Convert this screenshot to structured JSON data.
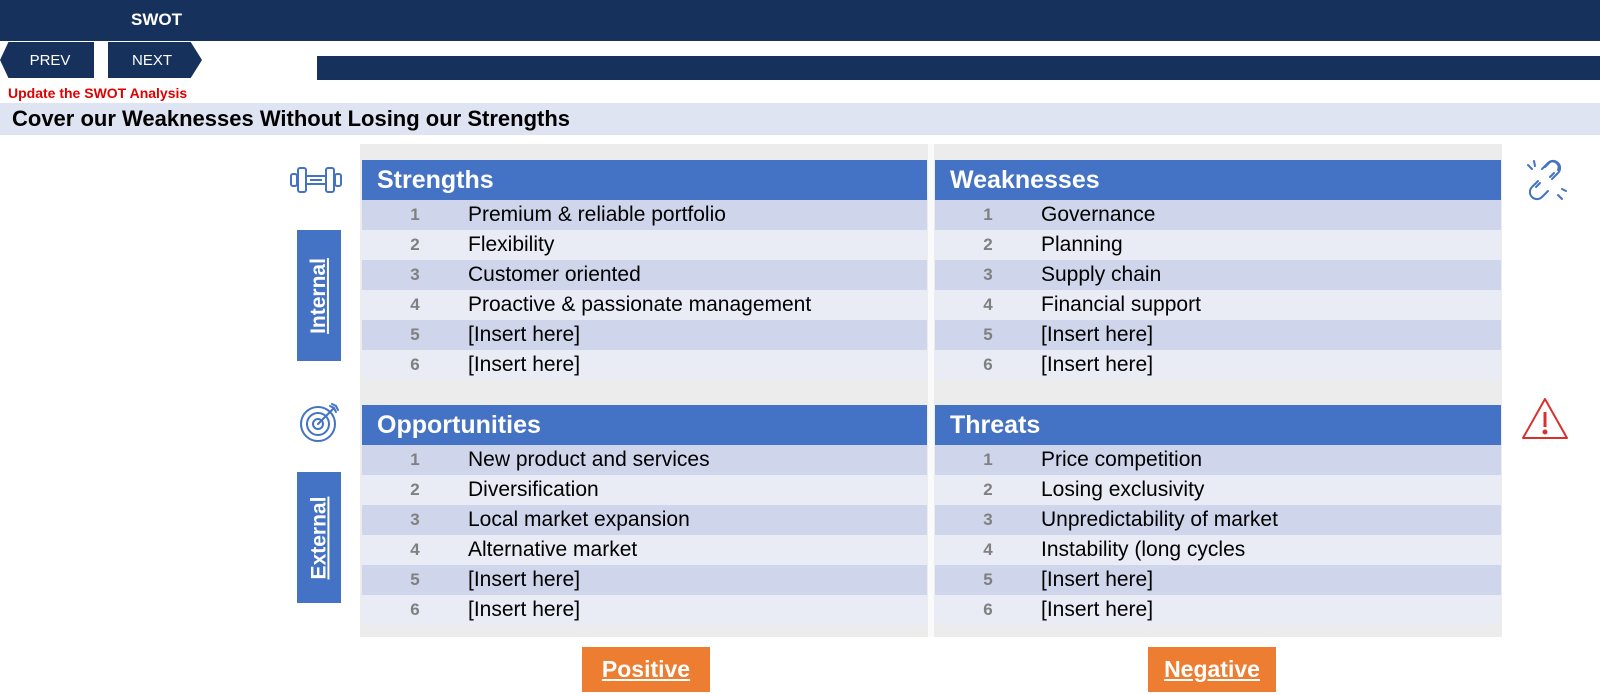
{
  "app": {
    "title": "SWOT"
  },
  "nav": {
    "prev": "PREV",
    "next": "NEXT"
  },
  "hint": "Update the SWOT Analysis",
  "subtitle": "Cover our Weaknesses Without Losing our Strengths",
  "side_labels": {
    "internal": "Internal",
    "external": "External"
  },
  "icons": {
    "strengths": "dumbbell-icon",
    "weaknesses": "broken-link-icon",
    "opportunities": "target-icon",
    "threats": "warning-icon"
  },
  "colors": {
    "header": "#16325c",
    "accent": "#4472c4",
    "orange": "#ed7d31",
    "hint": "#e00000",
    "threat_icon": "#d9302c"
  },
  "quadrants": {
    "strengths": {
      "title": "Strengths",
      "items": [
        {
          "n": "1",
          "text": "Premium & reliable portfolio"
        },
        {
          "n": "2",
          "text": "Flexibility"
        },
        {
          "n": "3",
          "text": "Customer oriented"
        },
        {
          "n": "4",
          "text": "Proactive & passionate management"
        },
        {
          "n": "5",
          "text": "[Insert here]"
        },
        {
          "n": "6",
          "text": "[Insert here]"
        }
      ]
    },
    "weaknesses": {
      "title": "Weaknesses",
      "items": [
        {
          "n": "1",
          "text": "Governance"
        },
        {
          "n": "2",
          "text": "Planning"
        },
        {
          "n": "3",
          "text": "Supply chain"
        },
        {
          "n": "4",
          "text": "Financial support"
        },
        {
          "n": "5",
          "text": "[Insert here]"
        },
        {
          "n": "6",
          "text": "[Insert here]"
        }
      ]
    },
    "opportunities": {
      "title": "Opportunities",
      "items": [
        {
          "n": "1",
          "text": "New product and services"
        },
        {
          "n": "2",
          "text": "Diversification"
        },
        {
          "n": "3",
          "text": "Local market expansion"
        },
        {
          "n": "4",
          "text": "Alternative market"
        },
        {
          "n": "5",
          "text": "[Insert here]"
        },
        {
          "n": "6",
          "text": "[Insert here]"
        }
      ]
    },
    "threats": {
      "title": "Threats",
      "items": [
        {
          "n": "1",
          "text": "Price competition"
        },
        {
          "n": "2",
          "text": "Losing exclusivity"
        },
        {
          "n": "3",
          "text": "Unpredictability of market"
        },
        {
          "n": "4",
          "text": "Instability (long cycles"
        },
        {
          "n": "5",
          "text": "[Insert here]"
        },
        {
          "n": "6",
          "text": "[Insert here]"
        }
      ]
    }
  },
  "bottom": {
    "positive": "Positive",
    "negative": "Negative"
  }
}
